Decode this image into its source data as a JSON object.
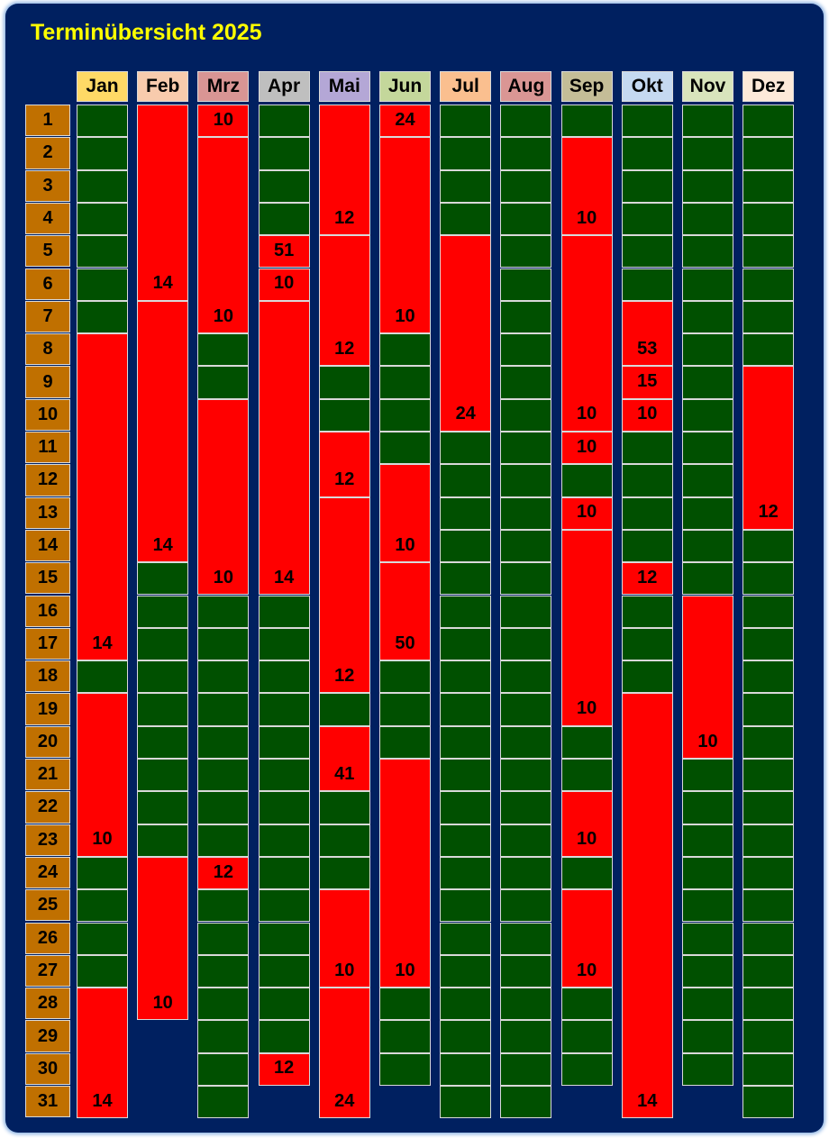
{
  "title": "Terminübersicht 2025",
  "months": [
    {
      "name": "Jan",
      "color": "#ffd966",
      "days": 31,
      "blocks": [
        {
          "start": 8,
          "end": 17,
          "label": "14"
        },
        {
          "start": 19,
          "end": 23,
          "label": "10"
        },
        {
          "start": 28,
          "end": 31,
          "label": "14"
        }
      ]
    },
    {
      "name": "Feb",
      "color": "#f8cbad",
      "days": 28,
      "blocks": [
        {
          "start": 1,
          "end": 6,
          "label": "14"
        },
        {
          "start": 7,
          "end": 14,
          "label": "14"
        },
        {
          "start": 24,
          "end": 28,
          "label": "10"
        }
      ]
    },
    {
      "name": "Mrz",
      "color": "#d99594",
      "days": 31,
      "blocks": [
        {
          "start": 1,
          "end": 1,
          "label": "10"
        },
        {
          "start": 2,
          "end": 7,
          "label": "10"
        },
        {
          "start": 10,
          "end": 15,
          "label": "10"
        },
        {
          "start": 24,
          "end": 24,
          "label": "12"
        }
      ]
    },
    {
      "name": "Apr",
      "color": "#bfbfbf",
      "days": 30,
      "blocks": [
        {
          "start": 5,
          "end": 5,
          "label": "51"
        },
        {
          "start": 6,
          "end": 6,
          "label": "10"
        },
        {
          "start": 7,
          "end": 15,
          "label": "14"
        },
        {
          "start": 30,
          "end": 30,
          "label": "12"
        }
      ]
    },
    {
      "name": "Mai",
      "color": "#b4a7d6",
      "days": 31,
      "blocks": [
        {
          "start": 1,
          "end": 4,
          "label": "12"
        },
        {
          "start": 5,
          "end": 8,
          "label": "12"
        },
        {
          "start": 11,
          "end": 12,
          "label": "12"
        },
        {
          "start": 13,
          "end": 18,
          "label": "12"
        },
        {
          "start": 20,
          "end": 21,
          "label": "41"
        },
        {
          "start": 25,
          "end": 27,
          "label": "10"
        },
        {
          "start": 28,
          "end": 31,
          "label": "24"
        }
      ]
    },
    {
      "name": "Jun",
      "color": "#c4d79b",
      "days": 30,
      "blocks": [
        {
          "start": 1,
          "end": 1,
          "label": "24"
        },
        {
          "start": 2,
          "end": 7,
          "label": "10"
        },
        {
          "start": 12,
          "end": 14,
          "label": "10"
        },
        {
          "start": 15,
          "end": 17,
          "label": "50"
        },
        {
          "start": 21,
          "end": 27,
          "label": "10"
        }
      ]
    },
    {
      "name": "Jul",
      "color": "#fabf8f",
      "days": 31,
      "blocks": [
        {
          "start": 5,
          "end": 10,
          "label": "24"
        }
      ]
    },
    {
      "name": "Aug",
      "color": "#da9694",
      "days": 31,
      "blocks": []
    },
    {
      "name": "Sep",
      "color": "#c4bd97",
      "days": 30,
      "blocks": [
        {
          "start": 2,
          "end": 4,
          "label": "10"
        },
        {
          "start": 5,
          "end": 10,
          "label": "10"
        },
        {
          "start": 11,
          "end": 11,
          "label": "10"
        },
        {
          "start": 13,
          "end": 13,
          "label": "10"
        },
        {
          "start": 14,
          "end": 19,
          "label": "10"
        },
        {
          "start": 22,
          "end": 23,
          "label": "10"
        },
        {
          "start": 25,
          "end": 27,
          "label": "10"
        }
      ]
    },
    {
      "name": "Okt",
      "color": "#c5d9f1",
      "days": 31,
      "blocks": [
        {
          "start": 7,
          "end": 8,
          "label": "53"
        },
        {
          "start": 9,
          "end": 9,
          "label": "15"
        },
        {
          "start": 10,
          "end": 10,
          "label": "10"
        },
        {
          "start": 15,
          "end": 15,
          "label": "12"
        },
        {
          "start": 19,
          "end": 31,
          "label": "14"
        }
      ]
    },
    {
      "name": "Nov",
      "color": "#d8e4bc",
      "days": 30,
      "blocks": [
        {
          "start": 16,
          "end": 20,
          "label": "10"
        }
      ]
    },
    {
      "name": "Dez",
      "color": "#fde9d9",
      "days": 31,
      "blocks": [
        {
          "start": 9,
          "end": 13,
          "label": "12"
        }
      ]
    }
  ]
}
